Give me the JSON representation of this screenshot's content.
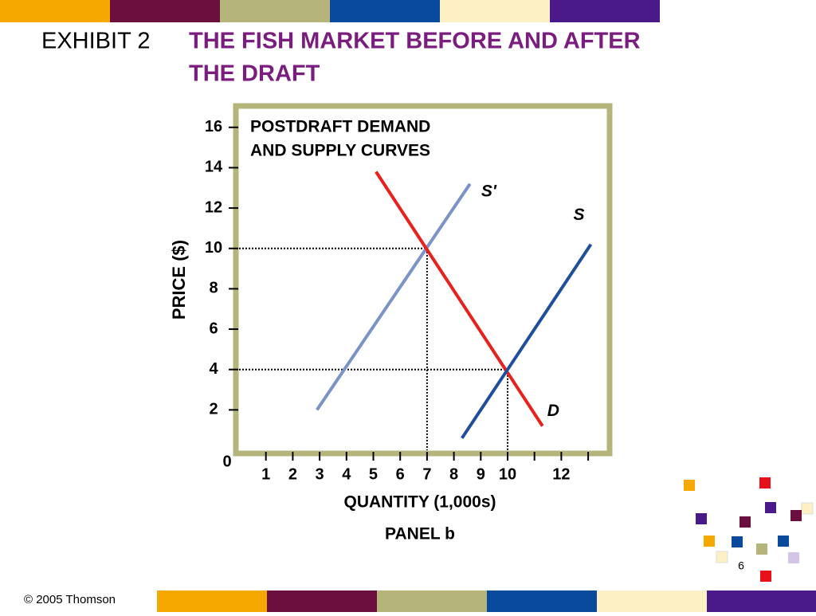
{
  "slide": {
    "exhibit": "EXHIBIT 2",
    "title": [
      "THE FISH MARKET BEFORE AND AFTER",
      "THE DRAFT"
    ],
    "footer": "© 2005 Thomson",
    "page_number": "6"
  },
  "chart_data": {
    "type": "line",
    "title": [
      "POSTDRAFT DEMAND",
      "AND SUPPLY CURVES"
    ],
    "xlabel": "QUANTITY (1,000s)",
    "ylabel": "PRICE ($)",
    "caption": "PANEL b",
    "xlim": [
      0,
      13.65
    ],
    "ylim": [
      0,
      16.9
    ],
    "xticks": [
      1,
      2,
      3,
      4,
      5,
      6,
      7,
      8,
      9,
      10,
      12
    ],
    "xminor_ticks": [
      11,
      13
    ],
    "yticks": [
      0,
      2,
      4,
      6,
      8,
      10,
      12,
      14,
      16
    ],
    "series": [
      {
        "name": "S'",
        "color": "#7b93c8",
        "x": [
          2.9,
          8.6
        ],
        "values": [
          2,
          13.2
        ]
      },
      {
        "name": "D",
        "color": "#e8211c",
        "x": [
          5.1,
          11.3
        ],
        "values": [
          13.8,
          1.2
        ]
      },
      {
        "name": "S",
        "color": "#1f4e9c",
        "x": [
          8.3,
          13.1
        ],
        "values": [
          0.6,
          10.2
        ]
      }
    ],
    "guides": [
      {
        "x": 7,
        "y": 10
      },
      {
        "x": 10,
        "y": 4
      }
    ]
  }
}
